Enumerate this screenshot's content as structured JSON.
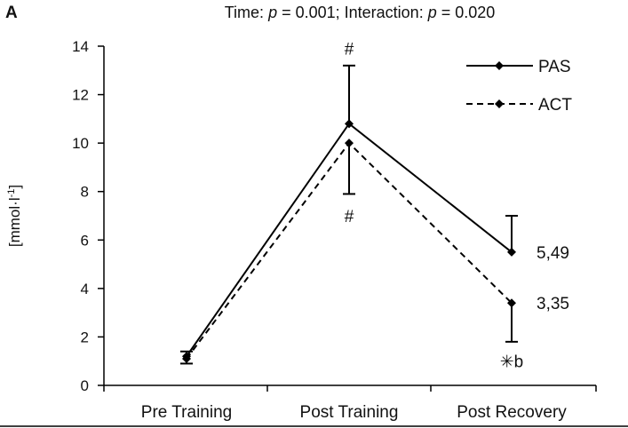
{
  "panel_label": "A",
  "chart_data": {
    "type": "line",
    "title": "Time: p = 0.001; Interaction: p = 0.020",
    "title_parts": {
      "time_prefix": "Time: ",
      "p1": "p",
      "time_value": " = 0.001; Interaction: ",
      "p2": "p",
      "interaction_value": " = 0.020"
    },
    "ylabel": "[mmol·l-1]",
    "ylabel_parts": {
      "base": "[mmol·l",
      "sup": "-1",
      "close": "]"
    },
    "xlabel": "",
    "ylim": [
      0,
      14
    ],
    "yticks": [
      0,
      2,
      4,
      6,
      8,
      10,
      12,
      14
    ],
    "grid": false,
    "legend_position": "top-right",
    "categories": [
      "Pre Training",
      "Post Training",
      "Post Recovery"
    ],
    "series": [
      {
        "name": "PAS",
        "style": "solid",
        "color": "#000000",
        "values": [
          1.2,
          10.8,
          5.5
        ],
        "error_up": [
          0.2,
          2.4,
          1.5
        ],
        "error_down": [
          0,
          0,
          0
        ]
      },
      {
        "name": "ACT",
        "style": "dashed",
        "color": "#000000",
        "values": [
          1.1,
          10.0,
          3.4
        ],
        "error_up": [
          0,
          0,
          0
        ],
        "error_down": [
          0.2,
          2.1,
          1.6
        ]
      }
    ],
    "annotations": [
      {
        "text": "#",
        "category": "Post Training",
        "y": 13.9,
        "series": "PAS"
      },
      {
        "text": "#",
        "category": "Post Training",
        "y": 7.0,
        "series": "ACT"
      },
      {
        "text": "5,49",
        "category": "Post Recovery",
        "y": 5.5,
        "series": "PAS",
        "side": "right"
      },
      {
        "text": "3,35",
        "category": "Post Recovery",
        "y": 3.4,
        "series": "ACT",
        "side": "right"
      },
      {
        "text": "✳b",
        "category": "Post Recovery",
        "y": 1.0,
        "series": "ACT"
      }
    ]
  }
}
